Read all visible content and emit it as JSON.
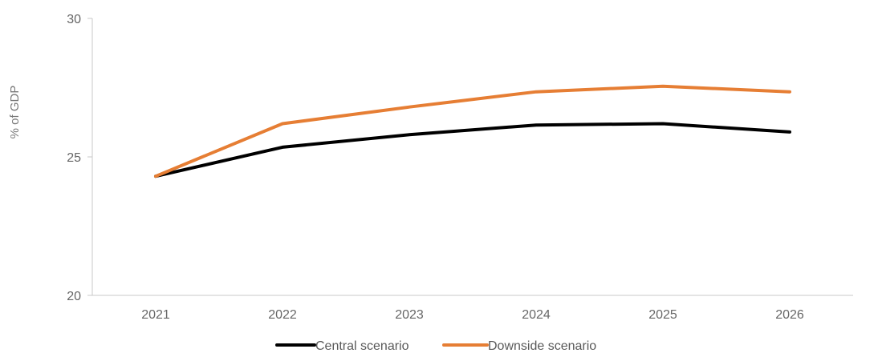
{
  "chart_data": {
    "type": "line",
    "title": "",
    "xlabel": "",
    "ylabel": "% of GDP",
    "categories": [
      "2021",
      "2022",
      "2023",
      "2024",
      "2025",
      "2026"
    ],
    "ylim": [
      20,
      30
    ],
    "yticks": [
      20,
      25,
      30
    ],
    "grid": false,
    "legend_position": "bottom",
    "series": [
      {
        "name": "Central scenario",
        "color": "#000000",
        "values": [
          24.3,
          25.35,
          25.8,
          26.15,
          26.2,
          25.9
        ]
      },
      {
        "name": "Downside scenario",
        "color": "#E67E34",
        "values": [
          24.3,
          26.2,
          26.8,
          27.35,
          27.55,
          27.35
        ]
      }
    ]
  }
}
